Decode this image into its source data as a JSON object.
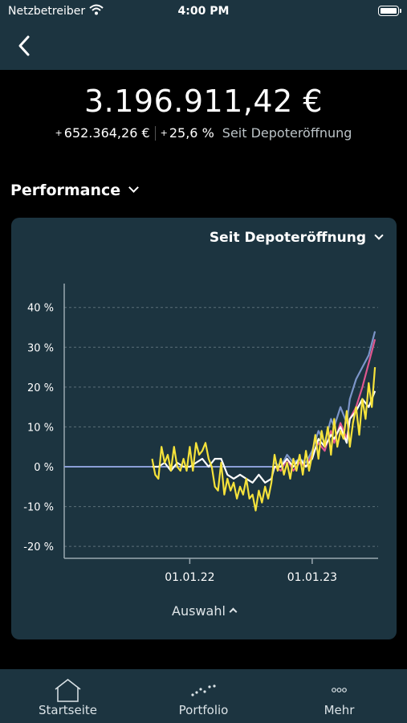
{
  "status_bar": {
    "carrier": "Netzbetreiber",
    "time": "4:00 PM"
  },
  "header": {
    "back_icon": "chevron-left-icon"
  },
  "portfolio": {
    "total_value": "3.196.911,42 €",
    "change_abs": "652.364,26 €",
    "change_pct": "25,6 %",
    "change_sign": "+",
    "period_label": "Seit Depoteröffnung"
  },
  "performance_select": {
    "label": "Performance"
  },
  "chart_card": {
    "range_label": "Seit Depoteröffnung",
    "selection_label": "Auswahl"
  },
  "colors": {
    "background": "#000000",
    "panel": "#1c3440",
    "series_white": "#ffffff",
    "series_yellow": "#f5e23a",
    "series_pink": "#e0578f",
    "series_blue": "#7c95c9",
    "baseline": "#8b9fd6"
  },
  "chart_data": {
    "type": "line",
    "y_tick_labels": [
      "40 %",
      "30 %",
      "20 %",
      "10 %",
      "0 %",
      "-10 %",
      "-20 %"
    ],
    "x_tick_labels": [
      "01.01.22",
      "01.01.23"
    ],
    "ylim": [
      -23,
      46
    ],
    "xlim": [
      0,
      100
    ],
    "x_ticks": [
      40,
      79
    ],
    "grid": "dashed horizontal",
    "series": [
      {
        "color": "#e0578f",
        "x": [
          67,
          69,
          71,
          73,
          75,
          77,
          79,
          81,
          83,
          85,
          86,
          88,
          90,
          91,
          93,
          95,
          97,
          99
        ],
        "y": [
          0,
          -1,
          2,
          -1,
          1,
          0,
          3,
          6,
          4,
          9,
          6,
          11,
          7,
          12,
          15,
          20,
          26,
          32
        ]
      },
      {
        "color": "#7c95c9",
        "x": [
          67,
          69,
          71,
          73,
          75,
          77,
          79,
          81,
          83,
          85,
          86,
          88,
          90,
          91,
          93,
          95,
          97,
          99
        ],
        "y": [
          1,
          0,
          3,
          1,
          2,
          1,
          4,
          9,
          6,
          12,
          10,
          15,
          11,
          17,
          22,
          25,
          28,
          34
        ]
      },
      {
        "color": "#ffffff",
        "x": [
          28,
          30,
          32,
          34,
          36,
          38,
          40,
          42,
          44,
          46,
          48,
          50,
          52,
          54,
          56,
          58,
          60,
          62,
          64,
          66,
          67,
          69,
          71,
          73,
          75,
          77,
          79,
          81,
          83,
          85,
          86,
          88,
          90,
          91,
          93,
          95,
          97,
          99
        ],
        "y": [
          0,
          0,
          1,
          -1,
          1,
          0,
          0,
          1,
          2,
          0,
          2,
          2,
          -2,
          -3,
          -2,
          -3,
          -4,
          -2,
          -4,
          -3,
          0,
          0,
          2,
          0,
          2,
          0,
          2,
          7,
          5,
          8,
          7,
          10,
          6,
          12,
          14,
          17,
          15,
          19
        ]
      },
      {
        "color": "#f5e23a",
        "x": [
          28,
          29,
          30,
          31,
          32,
          33,
          34,
          35,
          36,
          37,
          38,
          39,
          40,
          41,
          42,
          43,
          44,
          45,
          46,
          47,
          48,
          49,
          50,
          51,
          52,
          53,
          54,
          55,
          56,
          57,
          58,
          59,
          60,
          61,
          62,
          63,
          64,
          65,
          66,
          67,
          68,
          69,
          70,
          71,
          72,
          73,
          74,
          75,
          76,
          77,
          78,
          79,
          80,
          81,
          82,
          83,
          84,
          85,
          86,
          87,
          88,
          89,
          90,
          91,
          92,
          93,
          94,
          95,
          96,
          97,
          98,
          99
        ],
        "y": [
          2,
          -2,
          -3,
          5,
          1,
          3,
          -1,
          5,
          0,
          -1,
          2,
          -1,
          5,
          -1,
          6,
          3,
          4,
          6,
          2,
          0,
          -5,
          -6,
          1,
          -7,
          -3,
          -6,
          -4,
          -8,
          -5,
          -7,
          -3,
          -8,
          -7,
          -11,
          -6,
          -9,
          -5,
          -8,
          -4,
          3,
          -1,
          2,
          -2,
          1,
          -3,
          2,
          -1,
          3,
          -2,
          4,
          -1,
          3,
          8,
          2,
          9,
          5,
          10,
          3,
          12,
          5,
          9,
          7,
          14,
          5,
          11,
          15,
          8,
          17,
          12,
          21,
          15,
          25
        ]
      }
    ]
  },
  "tab_bar": {
    "tabs": [
      {
        "label": "Startseite",
        "icon": "home-icon"
      },
      {
        "label": "Portfolio",
        "icon": "chart-dots-icon"
      },
      {
        "label": "Mehr",
        "icon": "more-dots-icon"
      }
    ]
  }
}
